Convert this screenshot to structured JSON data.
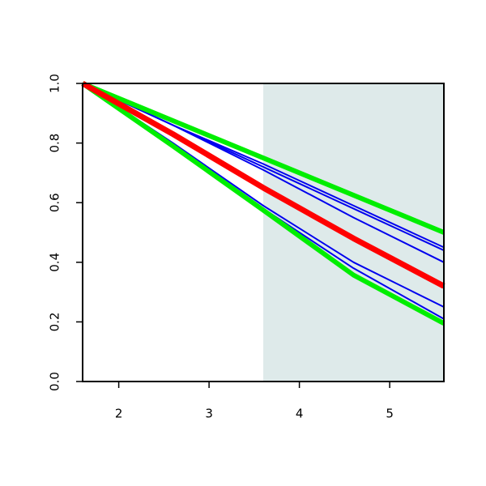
{
  "chart_data": {
    "type": "line",
    "x": [
      1.6,
      2.6,
      3.6,
      4.6,
      5.6
    ],
    "xlim": [
      1.6,
      5.6
    ],
    "ylim": [
      0,
      1
    ],
    "xticks": [
      2,
      3,
      4,
      5
    ],
    "yticks": [
      {
        "value": 0,
        "label": "0.0"
      },
      0.2,
      0.4,
      0.6,
      0.8,
      {
        "value": 1,
        "label": "1.0"
      }
    ],
    "shade_x": [
      3.6,
      5.6
    ],
    "shade_color": "#deeaea",
    "series": [
      {
        "color": "#0000ee",
        "lwd": 2,
        "values": [
          1,
          0.86,
          0.73,
          0.59,
          0.45
        ]
      },
      {
        "color": "#0000ee",
        "lwd": 2,
        "values": [
          1,
          0.86,
          0.72,
          0.58,
          0.44
        ]
      },
      {
        "color": "#0000ee",
        "lwd": 2,
        "values": [
          1,
          0.86,
          0.71,
          0.55,
          0.4
        ]
      },
      {
        "color": "#0000ee",
        "lwd": 2,
        "values": [
          1,
          0.8,
          0.59,
          0.4,
          0.25
        ]
      },
      {
        "color": "#0000ee",
        "lwd": 2,
        "values": [
          1,
          0.79,
          0.58,
          0.38,
          0.21
        ]
      },
      {
        "color": "#00ee00",
        "lwd": 6,
        "values": [
          1,
          0.875,
          0.75,
          0.625,
          0.5
        ]
      },
      {
        "color": "#00ee00",
        "lwd": 6,
        "values": [
          1,
          0.79,
          0.575,
          0.357,
          0.195
        ]
      },
      {
        "color": "#ff0000",
        "lwd": 7,
        "values": [
          1,
          0.83,
          0.65,
          0.48,
          0.32
        ]
      }
    ]
  }
}
